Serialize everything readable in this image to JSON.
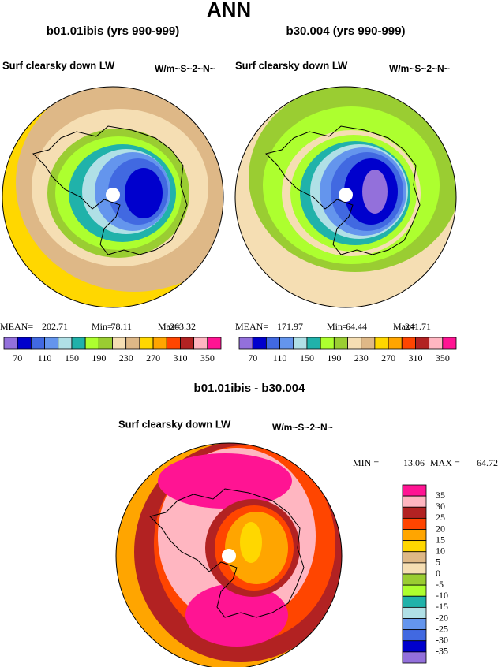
{
  "title": "ANN",
  "panels": [
    {
      "title": "b01.01ibis (yrs 990-999)",
      "variable": "Surf clearsky down LW",
      "units": "W/m~S~2~N~",
      "stats": [
        {
          "label": "MEAN=",
          "value": 202.71
        },
        {
          "label": "Min=",
          "value": 78.11
        },
        {
          "label": "Max=",
          "value": 263.32
        }
      ]
    },
    {
      "title": "b30.004 (yrs 990-999)",
      "variable": "Surf clearsky down LW",
      "units": "W/m~S~2~N~",
      "stats": [
        {
          "label": "MEAN=",
          "value": 171.97
        },
        {
          "label": "Min=",
          "value": 64.44
        },
        {
          "label": "Max=",
          "value": 241.71
        }
      ]
    }
  ],
  "colorbar": {
    "colors": [
      "#9370db",
      "#0000cd",
      "#4169e1",
      "#6495ed",
      "#b0e0e6",
      "#20b2aa",
      "#adff2f",
      "#9acd32",
      "#f5deb3",
      "#deb887",
      "#ffd700",
      "#ffa500",
      "#ff4500",
      "#b22222",
      "#ffb6c1",
      "#ff1493"
    ],
    "labels": [
      70,
      110,
      150,
      190,
      230,
      270,
      310,
      350
    ]
  },
  "difference": {
    "title": "b01.01ibis - b30.004",
    "variable": "Surf clearsky down LW",
    "units": "W/m~S~2~N~",
    "stats": [
      {
        "label": "MIN =",
        "value": 13.06
      },
      {
        "label": "MAX =",
        "value": 64.72
      }
    ],
    "colorbar": {
      "colors": [
        "#ff1493",
        "#ffb6c1",
        "#b22222",
        "#ff4500",
        "#ffa500",
        "#ffd700",
        "#deb887",
        "#f5deb3",
        "#9acd32",
        "#adff2f",
        "#20b2aa",
        "#b0e0e6",
        "#6495ed",
        "#4169e1",
        "#0000cd",
        "#9370db"
      ],
      "labels": [
        35,
        30,
        25,
        20,
        15,
        10,
        5,
        0,
        -5,
        -10,
        -15,
        -20,
        -25,
        -30,
        -35
      ]
    }
  }
}
